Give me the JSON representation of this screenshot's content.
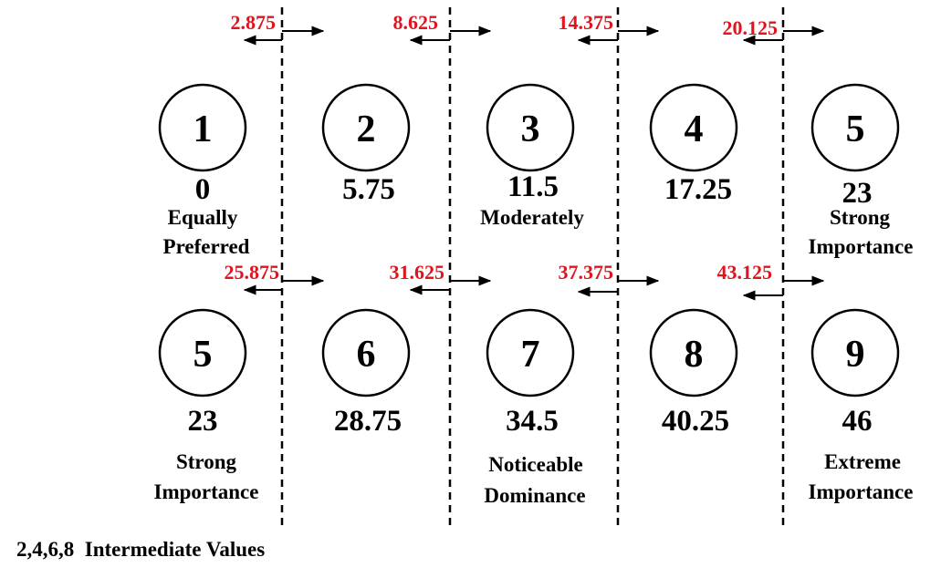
{
  "top_row": {
    "thresholds": [
      "2.875",
      "8.625",
      "14.375",
      "20.125"
    ],
    "items": [
      {
        "number": "1",
        "value": "0",
        "label": [
          "Equally",
          "Preferred"
        ]
      },
      {
        "number": "2",
        "value": "5.75",
        "label": []
      },
      {
        "number": "3",
        "value": "11.5",
        "label": [
          "Moderately"
        ]
      },
      {
        "number": "4",
        "value": "17.25",
        "label": []
      },
      {
        "number": "5",
        "value": "23",
        "label": [
          "Strong",
          "Importance"
        ]
      }
    ]
  },
  "bottom_row": {
    "thresholds": [
      "25.875",
      "31.625",
      "37.375",
      "43.125"
    ],
    "items": [
      {
        "number": "5",
        "value": "23",
        "label": [
          "Strong",
          "Importance"
        ]
      },
      {
        "number": "6",
        "value": "28.75",
        "label": []
      },
      {
        "number": "7",
        "value": "34.5",
        "label": [
          "Noticeable",
          "Dominance"
        ]
      },
      {
        "number": "8",
        "value": "40.25",
        "label": []
      },
      {
        "number": "9",
        "value": "46",
        "label": [
          "Extreme",
          "Importance"
        ]
      }
    ]
  },
  "footer": "2,4,6,8  Intermediate Values",
  "colors": {
    "threshold": "#e0141e",
    "ink": "#000000"
  }
}
